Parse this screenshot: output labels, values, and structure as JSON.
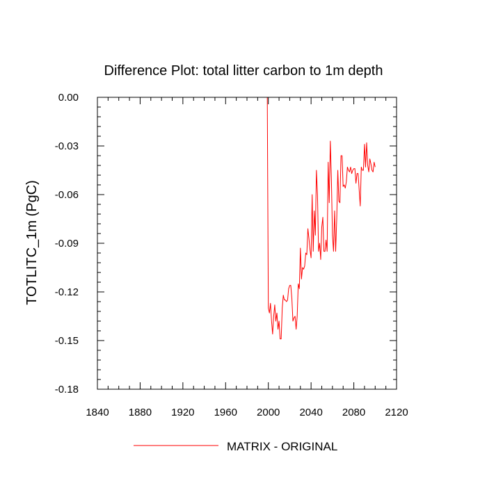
{
  "chart_data": {
    "type": "line",
    "title": "Difference Plot: total litter carbon to 1m depth",
    "ylabel": "TOTLITC_1m  (PgC)",
    "xlabel": "",
    "xlim": [
      1840,
      2120
    ],
    "ylim": [
      -0.18,
      0.0
    ],
    "xticks": [
      1840,
      1880,
      1920,
      1960,
      2000,
      2040,
      2080,
      2120
    ],
    "xtick_labels": [
      "1840",
      "1880",
      "1920",
      "1960",
      "2000",
      "2040",
      "2080",
      "2120"
    ],
    "yticks": [
      0.0,
      -0.03,
      -0.06,
      -0.09,
      -0.12,
      -0.15,
      -0.18
    ],
    "ytick_labels": [
      "0.00",
      "-0.03",
      "-0.06",
      "-0.09",
      "-0.12",
      "-0.15",
      "-0.18"
    ],
    "grid": false,
    "legend_position": "bottom-center",
    "series": [
      {
        "name": "MATRIX - ORIGINAL",
        "color": "#ff0000",
        "x": [
          1850,
          1999,
          2000,
          2001,
          2002,
          2003,
          2004,
          2005,
          2006,
          2007,
          2008,
          2009,
          2010,
          2011,
          2012,
          2013,
          2014,
          2015,
          2016,
          2017,
          2018,
          2019,
          2020,
          2021,
          2022,
          2023,
          2024,
          2025,
          2026,
          2027,
          2028,
          2029,
          2030,
          2031,
          2032,
          2033,
          2034,
          2035,
          2036,
          2037,
          2038,
          2039,
          2040,
          2041,
          2042,
          2043,
          2044,
          2045,
          2046,
          2047,
          2048,
          2049,
          2050,
          2051,
          2052,
          2053,
          2054,
          2055,
          2056,
          2057,
          2058,
          2059,
          2060,
          2061,
          2062,
          2063,
          2064,
          2065,
          2066,
          2067,
          2068,
          2069,
          2070,
          2071,
          2072,
          2073,
          2074,
          2075,
          2076,
          2077,
          2078,
          2079,
          2080,
          2081,
          2082,
          2083,
          2084,
          2085,
          2086,
          2087,
          2088,
          2089,
          2090,
          2091,
          2092,
          2093,
          2094,
          2095,
          2096,
          2097,
          2098,
          2099,
          2100
        ],
        "y": [
          0.0,
          0.0,
          -0.13,
          -0.133,
          -0.127,
          -0.138,
          -0.146,
          -0.135,
          -0.128,
          -0.138,
          -0.133,
          -0.143,
          -0.138,
          -0.149,
          -0.149,
          -0.13,
          -0.122,
          -0.125,
          -0.125,
          -0.126,
          -0.125,
          -0.118,
          -0.116,
          -0.116,
          -0.124,
          -0.138,
          -0.136,
          -0.135,
          -0.143,
          -0.135,
          -0.115,
          -0.118,
          -0.093,
          -0.112,
          -0.105,
          -0.106,
          -0.104,
          -0.096,
          -0.097,
          -0.081,
          -0.087,
          -0.094,
          -0.099,
          -0.06,
          -0.095,
          -0.07,
          -0.085,
          -0.045,
          -0.06,
          -0.095,
          -0.09,
          -0.1,
          -0.08,
          -0.074,
          -0.095,
          -0.095,
          -0.088,
          -0.095,
          -0.04,
          -0.065,
          -0.027,
          -0.05,
          -0.085,
          -0.095,
          -0.07,
          -0.095,
          -0.075,
          -0.045,
          -0.064,
          -0.065,
          -0.036,
          -0.036,
          -0.055,
          -0.054,
          -0.056,
          -0.052,
          -0.043,
          -0.045,
          -0.046,
          -0.043,
          -0.047,
          -0.045,
          -0.044,
          -0.044,
          -0.053,
          -0.047,
          -0.047,
          -0.057,
          -0.067,
          -0.043,
          -0.045,
          -0.045,
          -0.029,
          -0.043,
          -0.028,
          -0.042,
          -0.046,
          -0.038,
          -0.041,
          -0.045,
          -0.046,
          -0.04,
          -0.043
        ]
      }
    ]
  }
}
